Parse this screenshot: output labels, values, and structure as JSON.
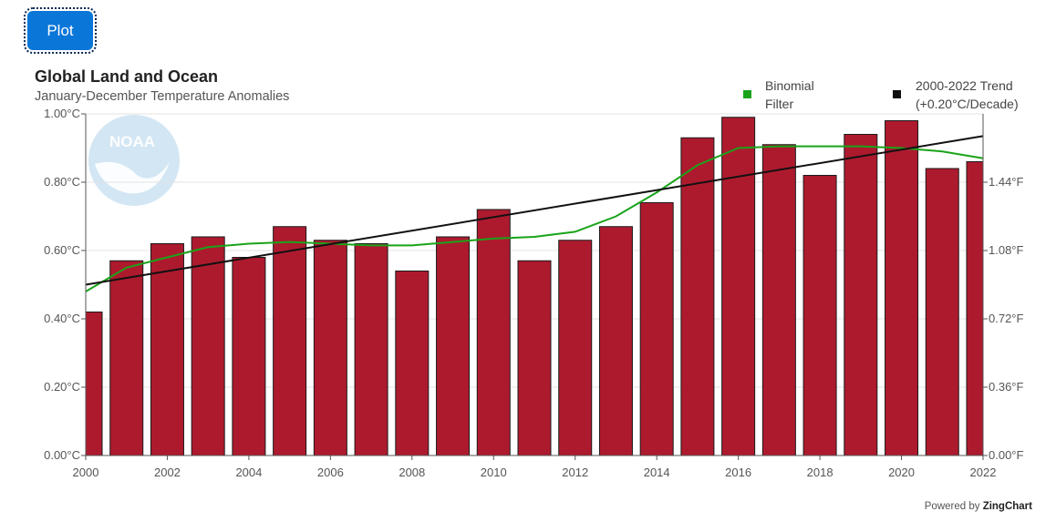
{
  "toolbar": {
    "plot_label": "Plot"
  },
  "footer": {
    "powered_prefix": "Powered by ",
    "powered_brand": "ZingChart"
  },
  "logo": {
    "text": "NOAA"
  },
  "colors": {
    "bar": "#ad1a2e",
    "bar_edge": "#1a1a1a",
    "filter": "#1aa31a",
    "trend": "#111111",
    "grid": "#e3e3e3",
    "logo": "#9ec8e6"
  },
  "chart_data": {
    "type": "bar",
    "title": "Global Land and Ocean",
    "subtitle": "January-December Temperature Anomalies",
    "categories": [
      2000,
      2001,
      2002,
      2003,
      2004,
      2005,
      2006,
      2007,
      2008,
      2009,
      2010,
      2011,
      2012,
      2013,
      2014,
      2015,
      2016,
      2017,
      2018,
      2019,
      2020,
      2021,
      2022
    ],
    "x_tick_labels": [
      "2000",
      "2002",
      "2004",
      "2006",
      "2008",
      "2010",
      "2012",
      "2014",
      "2016",
      "2018",
      "2020",
      "2022"
    ],
    "y_left_tick_labels": [
      "0.00°C",
      "0.20°C",
      "0.40°C",
      "0.60°C",
      "0.80°C",
      "1.00°C"
    ],
    "y_left_tick_values": [
      0,
      0.2,
      0.4,
      0.6,
      0.8,
      1.0
    ],
    "y_right_tick_labels": [
      "0.00°F",
      "0.36°F",
      "0.72°F",
      "1.08°F",
      "1.44°F"
    ],
    "ylim": [
      0,
      1.0
    ],
    "grid": true,
    "series": [
      {
        "type": "bar",
        "values": [
          0.42,
          0.57,
          0.62,
          0.64,
          0.58,
          0.67,
          0.63,
          0.62,
          0.54,
          0.64,
          0.72,
          0.57,
          0.63,
          0.67,
          0.74,
          0.93,
          0.99,
          0.91,
          0.82,
          0.94,
          0.98,
          0.84,
          0.86
        ]
      },
      {
        "type": "line",
        "name": "Binomial Filter",
        "values": [
          0.48,
          0.55,
          0.58,
          0.61,
          0.62,
          0.625,
          0.62,
          0.615,
          0.615,
          0.625,
          0.635,
          0.64,
          0.655,
          0.7,
          0.77,
          0.85,
          0.9,
          0.905,
          0.905,
          0.905,
          0.9,
          0.89,
          0.87
        ]
      },
      {
        "type": "line",
        "name": "2000-2022 Trend",
        "name_line2": "(+0.20°C/Decade)",
        "x": [
          2000,
          2022
        ],
        "values": [
          0.5,
          0.935
        ]
      }
    ],
    "legend_position": "top-right"
  }
}
